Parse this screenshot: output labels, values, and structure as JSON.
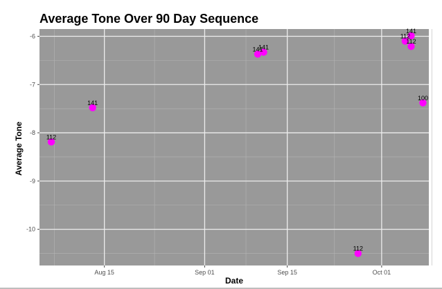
{
  "chart_data": {
    "type": "scatter",
    "title": "Average Tone Over 90 Day Sequence",
    "xlabel": "Date",
    "ylabel": "Average Tone",
    "x_ticks": [
      {
        "date": "2017-08-15",
        "label": "Aug 15"
      },
      {
        "date": "2017-09-01",
        "label": "Sep 01"
      },
      {
        "date": "2017-09-15",
        "label": "Sep 15"
      },
      {
        "date": "2017-10-01",
        "label": "Oct 01"
      }
    ],
    "y_ticks": [
      -6,
      -7,
      -8,
      -9,
      -10
    ],
    "xlim": [
      "2017-08-04",
      "2017-10-09"
    ],
    "ylim": [
      -10.75,
      -5.85
    ],
    "grid": true,
    "point_color": "#ff00ff",
    "panel_color": "#999999",
    "points": [
      {
        "x": "2017-08-06",
        "y": -8.19,
        "label": "112"
      },
      {
        "x": "2017-08-13",
        "y": -7.48,
        "label": "141"
      },
      {
        "x": "2017-09-10",
        "y": -6.37,
        "label": "141"
      },
      {
        "x": "2017-09-11",
        "y": -6.33,
        "label": "141"
      },
      {
        "x": "2017-09-27",
        "y": -10.5,
        "label": "112"
      },
      {
        "x": "2017-10-05",
        "y": -6.1,
        "label": "112"
      },
      {
        "x": "2017-10-06",
        "y": -6.21,
        "label": "112"
      },
      {
        "x": "2017-10-06",
        "y": -5.99,
        "label": "141"
      },
      {
        "x": "2017-10-08",
        "y": -7.38,
        "label": "100"
      }
    ]
  }
}
